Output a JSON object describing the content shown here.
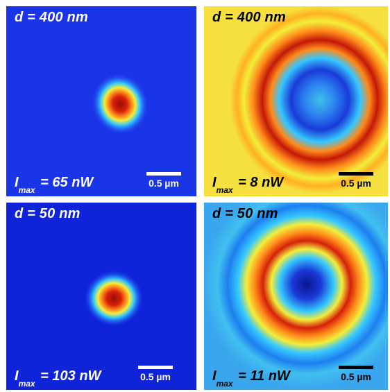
{
  "panels": [
    {
      "id": "p1",
      "d_label": "d = 400 nm",
      "i_sym": "I",
      "i_sub": "max",
      "i_val": "= 65 nW",
      "scale_label": "0.5 µm",
      "style": "spot",
      "text_color": "light"
    },
    {
      "id": "p2",
      "d_label": "d = 400 nm",
      "i_sym": "I",
      "i_sub": "max",
      "i_val": "= 8 nW",
      "scale_label": "0.5 µm",
      "style": "ring",
      "text_color": "dark"
    },
    {
      "id": "p3",
      "d_label": "d = 50 nm",
      "i_sym": "I",
      "i_sub": "max",
      "i_val": "= 103 nW",
      "scale_label": "0.5 µm",
      "style": "spot",
      "text_color": "light"
    },
    {
      "id": "p4",
      "d_label": "d = 50 nm",
      "i_sym": "I",
      "i_sub": "max",
      "i_val": "= 11 nW",
      "scale_label": "0.5 µm",
      "style": "ring",
      "text_color": "dark"
    }
  ],
  "colors": {
    "jet_dark_blue": "#0a1fd6",
    "jet_blue": "#1e5cff",
    "jet_cyan": "#35c8ff",
    "jet_yellow": "#f2ee3a",
    "jet_orange": "#ff8a1a",
    "jet_red": "#d6200a",
    "jet_dark_red": "#9a0d05"
  }
}
